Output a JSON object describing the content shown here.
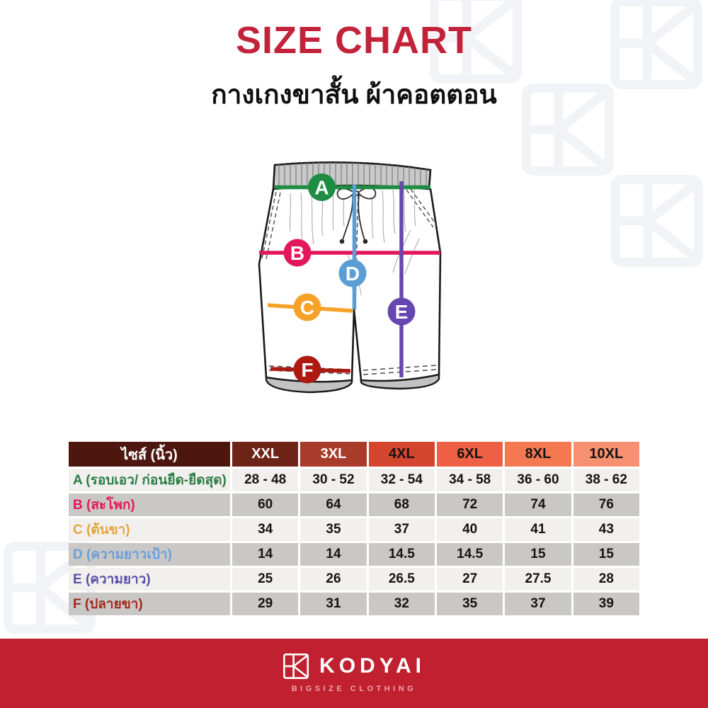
{
  "title": {
    "text": "SIZE CHART",
    "color": "#C2233A"
  },
  "subtitle": "กางเกงขาสั้น ผ้าคอตตอน",
  "diagram": {
    "markers": [
      {
        "letter": "A",
        "color": "#1E8C43"
      },
      {
        "letter": "B",
        "color": "#E4175C"
      },
      {
        "letter": "C",
        "color": "#F6A228"
      },
      {
        "letter": "D",
        "color": "#5B9ED5"
      },
      {
        "letter": "E",
        "color": "#6647B2"
      },
      {
        "letter": "F",
        "color": "#AD1A12"
      }
    ]
  },
  "chart_data": {
    "type": "table",
    "title": "SIZE CHART",
    "subtitle": "กางเกงขาสั้น ผ้าคอตตอน",
    "corner_label": "ไซส์ (นิ้ว)",
    "columns": [
      "XXL",
      "3XL",
      "4XL",
      "6XL",
      "8XL",
      "10XL"
    ],
    "rows": [
      {
        "label": "A (รอบเอว/ ก่อนยืด-ยืดสุด)",
        "values": [
          "28 - 48",
          "30 - 52",
          "32 - 54",
          "34 - 58",
          "36 - 60",
          "38 - 62"
        ]
      },
      {
        "label": "B (สะโพก)",
        "values": [
          "60",
          "64",
          "68",
          "72",
          "74",
          "76"
        ]
      },
      {
        "label": "C (ต้นขา)",
        "values": [
          "34",
          "35",
          "37",
          "40",
          "41",
          "43"
        ]
      },
      {
        "label": "D (ความยาวเป้า)",
        "values": [
          "14",
          "14",
          "14.5",
          "14.5",
          "15",
          "15"
        ]
      },
      {
        "label": "E (ความยาว)",
        "values": [
          "25",
          "26",
          "26.5",
          "27",
          "27.5",
          "28"
        ]
      },
      {
        "label": "F (ปลายขา)",
        "values": [
          "29",
          "31",
          "32",
          "35",
          "37",
          "39"
        ]
      }
    ]
  },
  "table_style": {
    "corner_bg": "#4D1710",
    "corner_fg": "#FFFFFF",
    "column_bg": [
      "#6F2418",
      "#A93B2B",
      "#D4452E",
      "#EE6046",
      "#F47950",
      "#F79070"
    ],
    "column_fg": [
      "#FFFFFF",
      "#FFFFFF",
      "#141414",
      "#141414",
      "#141414",
      "#141414"
    ],
    "row_label_colors": [
      "#2E7D46",
      "#E4175C",
      "#E8A33D",
      "#6B9FD8",
      "#5B4EA8",
      "#A6281E"
    ],
    "cell_light": "#F1F0EE",
    "cell_dark": "#C9C8C6"
  },
  "footer": {
    "brand": "KODYAI",
    "tagline": "BIGSIZE CLOTHING",
    "bg": "#C0202F"
  },
  "watermark_color": "#F1F3F6"
}
